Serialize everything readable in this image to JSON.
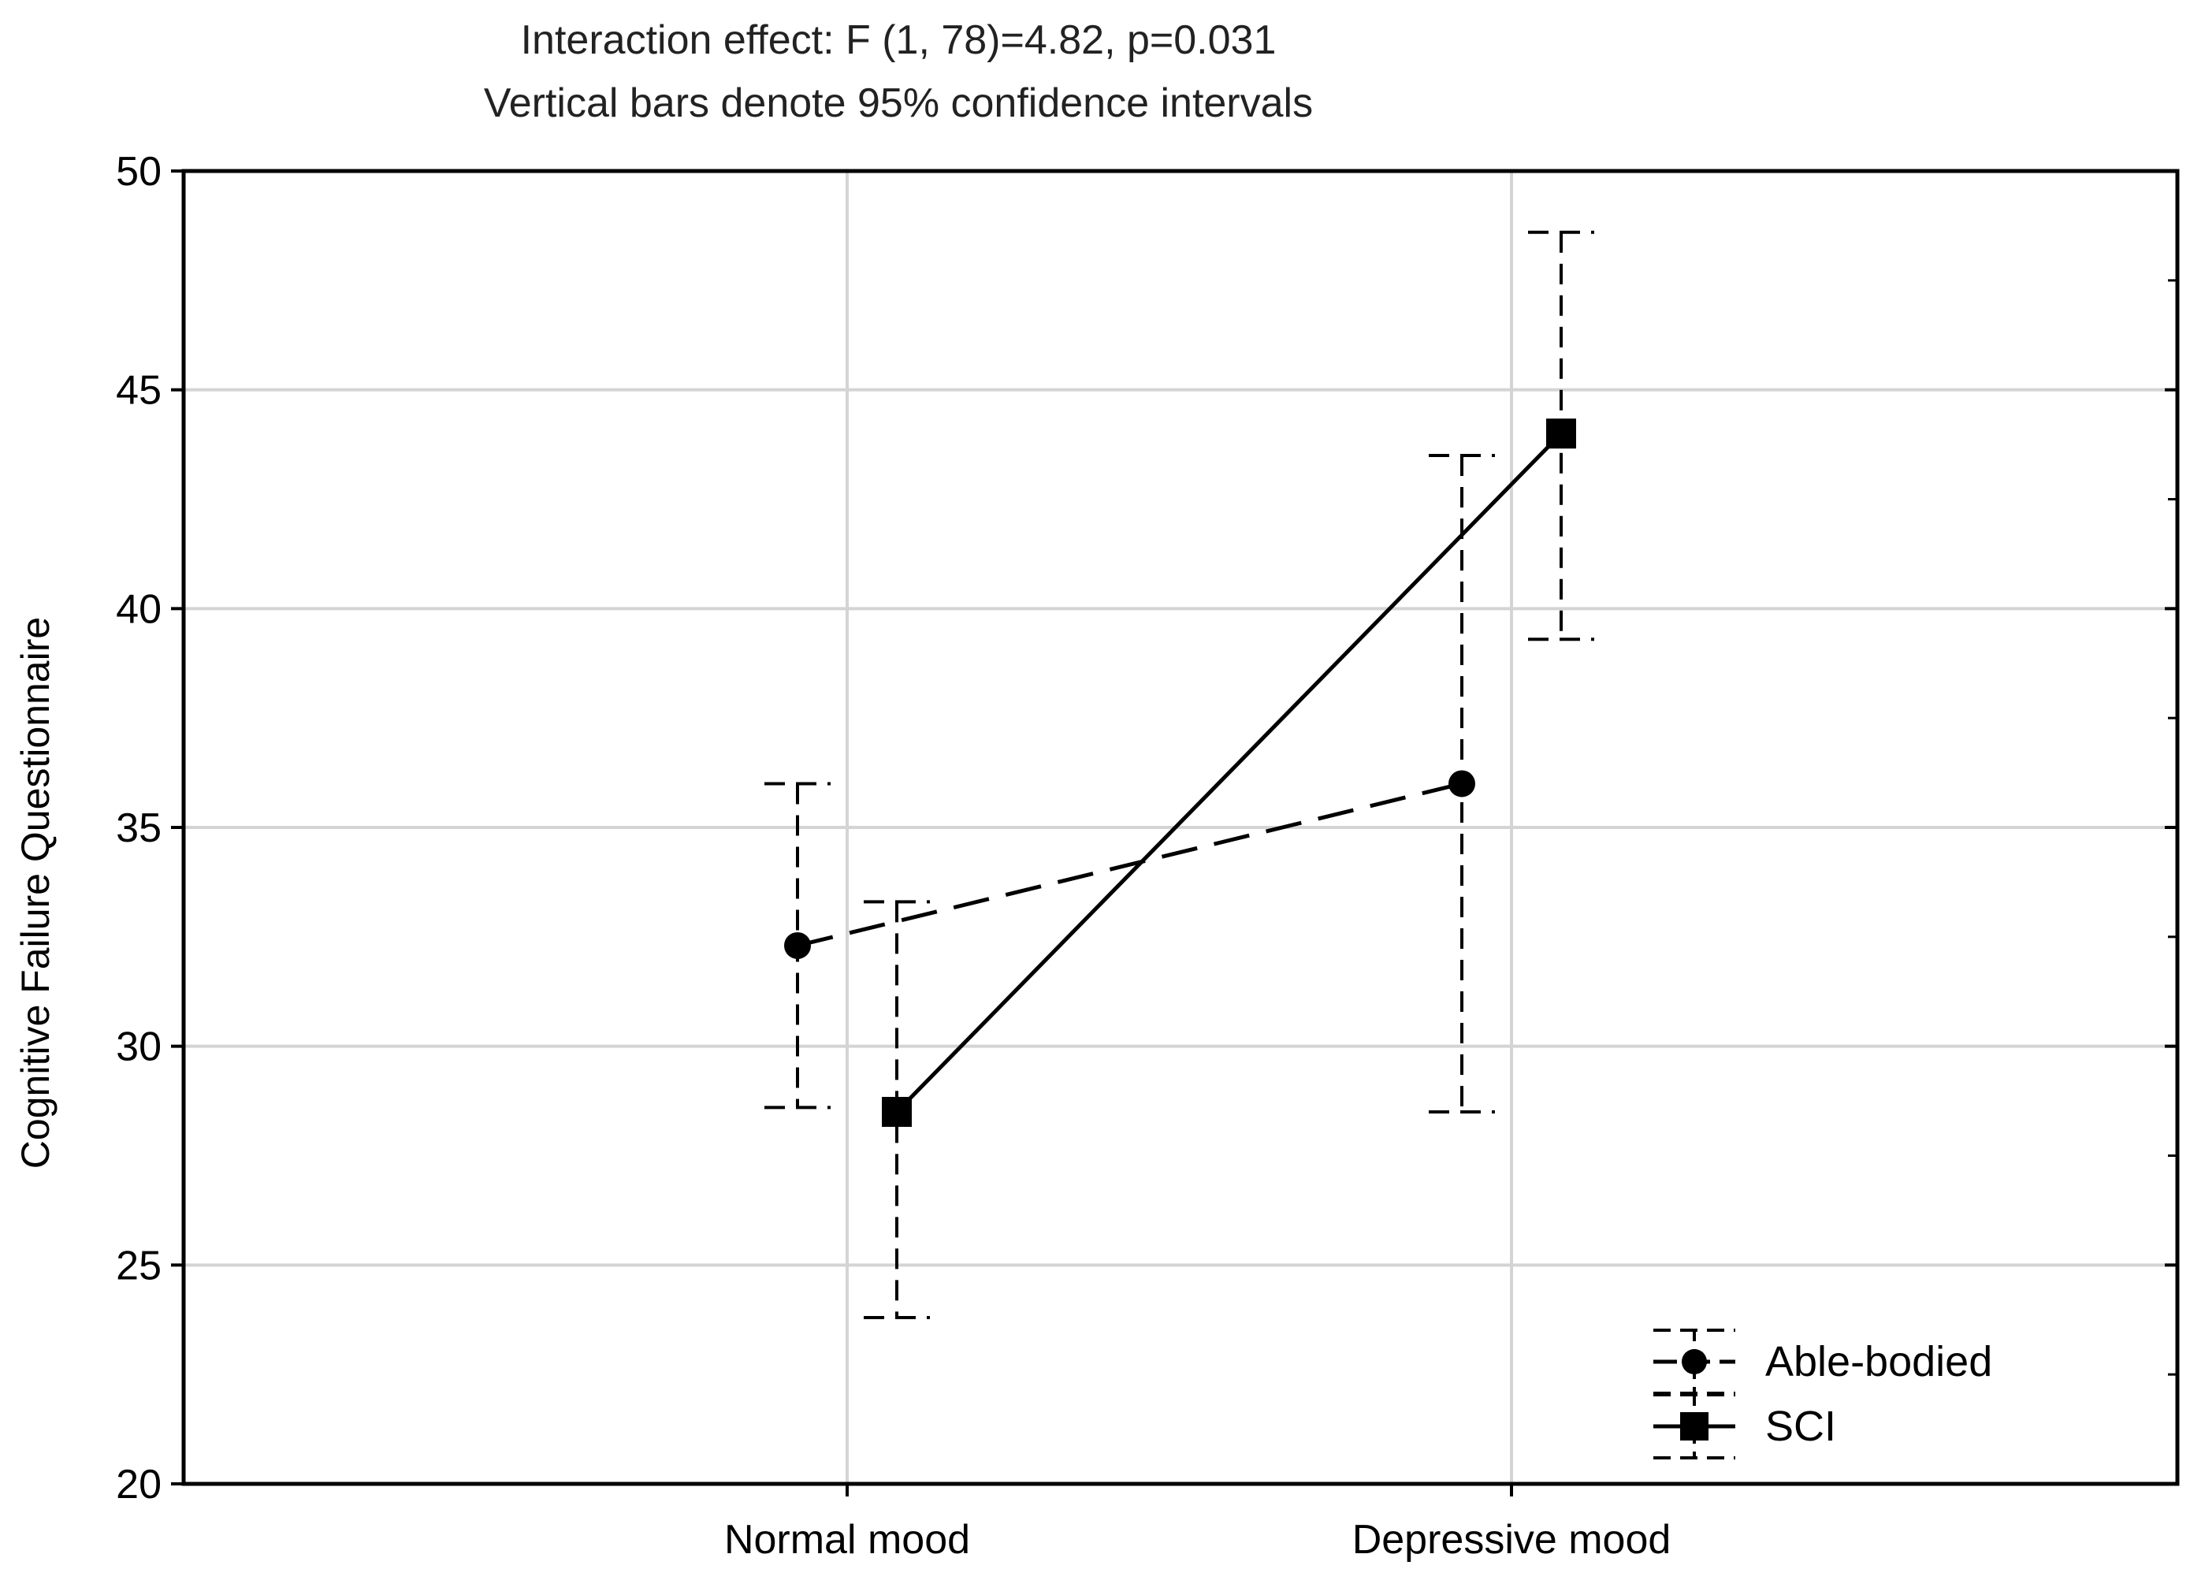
{
  "chart_data": {
    "type": "line",
    "title": "Interaction effect: F (1, 78)=4.82, p=0.031",
    "subtitle": "Vertical bars denote 95% confidence intervals",
    "xlabel": "",
    "ylabel": "Cognitive Failure Questionnaire",
    "categories": [
      "Normal mood",
      "Depressive mood"
    ],
    "ylim": [
      20,
      50
    ],
    "yticks": [
      20,
      25,
      30,
      35,
      40,
      45,
      50
    ],
    "grid": true,
    "legend_position": "bottom-right",
    "series": [
      {
        "name": "Able-bodied",
        "marker": "circle",
        "line_style": "dashed",
        "values": [
          32.3,
          36.0
        ],
        "ci_low": [
          28.6,
          28.5
        ],
        "ci_high": [
          36.0,
          43.5
        ]
      },
      {
        "name": "SCI",
        "marker": "square",
        "line_style": "solid",
        "values": [
          28.5,
          44.0
        ],
        "ci_low": [
          23.8,
          39.3
        ],
        "ci_high": [
          33.3,
          48.6
        ]
      }
    ]
  }
}
